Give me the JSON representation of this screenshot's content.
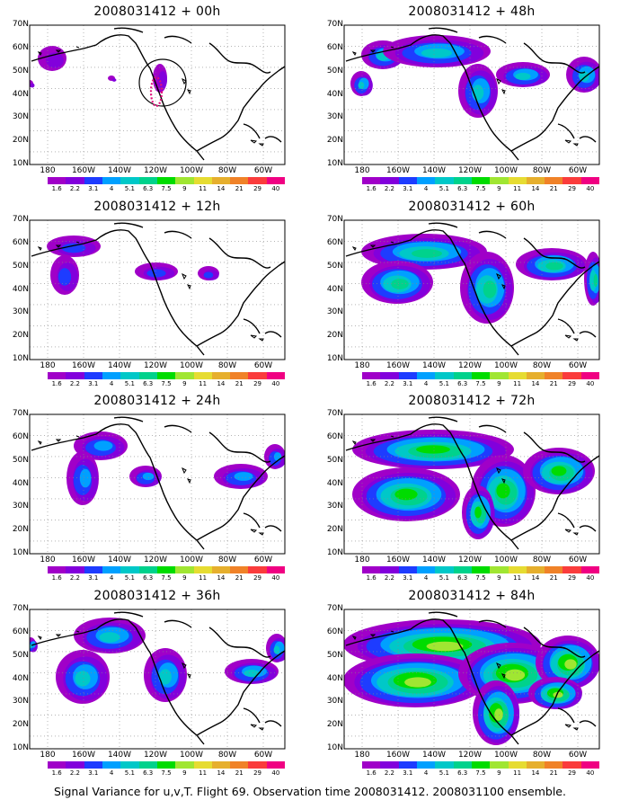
{
  "panels": [
    {
      "title": "2008031412 + 00h",
      "intensity": 0.12,
      "circle": true
    },
    {
      "title": "2008031412 + 48h",
      "intensity": 0.55,
      "circle": false
    },
    {
      "title": "2008031412 + 12h",
      "intensity": 0.22,
      "circle": false
    },
    {
      "title": "2008031412 + 60h",
      "intensity": 0.65,
      "circle": false
    },
    {
      "title": "2008031412 + 24h",
      "intensity": 0.38,
      "circle": false
    },
    {
      "title": "2008031412 + 72h",
      "intensity": 0.75,
      "circle": false
    },
    {
      "title": "2008031412 + 36h",
      "intensity": 0.45,
      "circle": false
    },
    {
      "title": "2008031412 + 84h",
      "intensity": 0.85,
      "circle": false
    }
  ],
  "lat_labels": [
    "70N",
    "60N",
    "50N",
    "40N",
    "30N",
    "20N",
    "10N"
  ],
  "lon_labels": [
    "180",
    "160W",
    "140W",
    "120W",
    "100W",
    "80W",
    "60W"
  ],
  "colorbar": {
    "labels": [
      "1.6",
      "2.2",
      "3.1",
      "4",
      "5.1",
      "6.3",
      "7.5",
      "9",
      "11",
      "14",
      "21",
      "29",
      "40"
    ],
    "colors": [
      "#a000c8",
      "#8200dc",
      "#1e3cff",
      "#00a0ff",
      "#00c8c8",
      "#00d28c",
      "#00dc00",
      "#a0e632",
      "#e6dc32",
      "#e6af2d",
      "#f08228",
      "#fa3c3c",
      "#f00082"
    ]
  },
  "footer": "Signal Variance for u,v,T. Flight 69. Observation time 2008031412. 2008031100 ensemble."
}
